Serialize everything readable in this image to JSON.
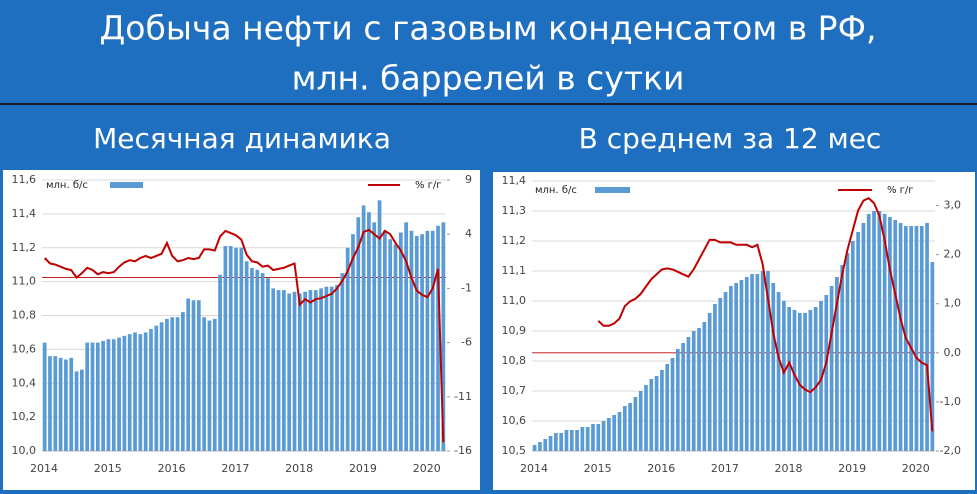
{
  "title": [
    "Добыча нефти с газовым конденсатом в РФ,",
    "млн. баррелей в сутки"
  ],
  "chart_data": [
    {
      "type": "combo",
      "title": "Месячная динамика",
      "categories": [
        "2014",
        null,
        null,
        null,
        null,
        null,
        null,
        null,
        null,
        null,
        null,
        null,
        "2015",
        null,
        null,
        null,
        null,
        null,
        null,
        null,
        null,
        null,
        null,
        null,
        "2016",
        null,
        null,
        null,
        null,
        null,
        null,
        null,
        null,
        null,
        null,
        null,
        "2017",
        null,
        null,
        null,
        null,
        null,
        null,
        null,
        null,
        null,
        null,
        null,
        "2018",
        null,
        null,
        null,
        null,
        null,
        null,
        null,
        null,
        null,
        null,
        null,
        "2019",
        null,
        null,
        null,
        null,
        null,
        null,
        null,
        null,
        null,
        null,
        null,
        "2020",
        null,
        null,
        null
      ],
      "series": [
        {
          "name": "млн. б/с",
          "color": "#5b9bd5",
          "values": [
            10.64,
            10.56,
            10.56,
            10.55,
            10.54,
            10.55,
            10.47,
            10.48,
            10.64,
            10.64,
            10.64,
            10.65,
            10.66,
            10.66,
            10.67,
            10.68,
            10.69,
            10.7,
            10.69,
            10.7,
            10.72,
            10.74,
            10.76,
            10.78,
            10.79,
            10.79,
            10.82,
            10.9,
            10.89,
            10.89,
            10.79,
            10.77,
            10.78,
            11.04,
            11.21,
            11.21,
            11.2,
            11.2,
            11.12,
            11.08,
            11.07,
            11.05,
            11.02,
            10.96,
            10.95,
            10.95,
            10.93,
            10.94,
            10.93,
            10.94,
            10.95,
            10.95,
            10.96,
            10.97,
            10.97,
            10.98,
            11.05,
            11.2,
            11.28,
            11.38,
            11.45,
            11.41,
            11.35,
            11.48,
            11.3,
            11.25,
            11.22,
            11.29,
            11.35,
            11.3,
            11.27,
            11.28,
            11.3,
            11.3,
            11.33,
            11.35
          ]
        },
        {
          "name": "% г/г",
          "color": "#c00000",
          "axis": "y2",
          "values": [
            1.8,
            1.3,
            1.2,
            1.0,
            0.8,
            0.7,
            0.0,
            0.4,
            0.9,
            0.7,
            0.3,
            0.5,
            0.4,
            0.5,
            1.0,
            1.4,
            1.6,
            1.5,
            1.8,
            2.0,
            1.8,
            2.0,
            2.2,
            3.2,
            2.0,
            1.5,
            1.6,
            1.8,
            1.7,
            1.8,
            2.6,
            2.6,
            2.5,
            3.8,
            4.3,
            4.1,
            3.9,
            3.5,
            2.1,
            1.5,
            1.4,
            1.0,
            1.1,
            0.7,
            0.8,
            0.9,
            1.1,
            1.3,
            -2.5,
            -2.0,
            -2.3,
            -2.0,
            -1.9,
            -1.7,
            -1.5,
            -1.0,
            -0.3,
            0.6,
            1.8,
            2.8,
            4.2,
            4.4,
            4.0,
            3.6,
            4.3,
            4.0,
            3.2,
            2.5,
            1.5,
            0.0,
            -1.2,
            -1.6,
            -1.8,
            -1.0,
            0.8,
            -15.2
          ]
        }
      ],
      "ylim": [
        10.0,
        11.6
      ],
      "yticks": [
        {
          "value": 10.0,
          "label": "10,0"
        },
        {
          "value": 10.2,
          "label": "10,2"
        },
        {
          "value": 10.4,
          "label": "10,4"
        },
        {
          "value": 10.6,
          "label": "10,6"
        },
        {
          "value": 10.8,
          "label": "10,8"
        },
        {
          "value": 11.0,
          "label": "11,0"
        },
        {
          "value": 11.2,
          "label": "11,2"
        },
        {
          "value": 11.4,
          "label": "11,4"
        },
        {
          "value": 11.6,
          "label": "11,6"
        }
      ],
      "y2lim": [
        -16,
        9
      ],
      "y2ticks": [
        -16,
        -11,
        -6,
        -1,
        4,
        9
      ],
      "grid": true
    },
    {
      "type": "combo",
      "title": "В среднем за 12 мес",
      "categories": [
        "2014",
        null,
        null,
        null,
        null,
        null,
        null,
        null,
        null,
        null,
        null,
        null,
        "2015",
        null,
        null,
        null,
        null,
        null,
        null,
        null,
        null,
        null,
        null,
        null,
        "2016",
        null,
        null,
        null,
        null,
        null,
        null,
        null,
        null,
        null,
        null,
        null,
        "2017",
        null,
        null,
        null,
        null,
        null,
        null,
        null,
        null,
        null,
        null,
        null,
        "2018",
        null,
        null,
        null,
        null,
        null,
        null,
        null,
        null,
        null,
        null,
        null,
        "2019",
        null,
        null,
        null,
        null,
        null,
        null,
        null,
        null,
        null,
        null,
        null,
        "2020",
        null,
        null,
        null
      ],
      "series": [
        {
          "name": "млн. б/с",
          "color": "#5b9bd5",
          "values": [
            10.52,
            10.53,
            10.54,
            10.55,
            10.56,
            10.56,
            10.57,
            10.57,
            10.57,
            10.58,
            10.58,
            10.59,
            10.59,
            10.6,
            10.61,
            10.62,
            10.63,
            10.65,
            10.66,
            10.68,
            10.7,
            10.72,
            10.74,
            10.75,
            10.77,
            10.79,
            10.81,
            10.84,
            10.86,
            10.88,
            10.9,
            10.91,
            10.93,
            10.96,
            10.99,
            11.01,
            11.03,
            11.05,
            11.06,
            11.07,
            11.08,
            11.09,
            11.09,
            11.1,
            11.1,
            11.06,
            11.03,
            11.0,
            10.98,
            10.97,
            10.96,
            10.96,
            10.97,
            10.98,
            11.0,
            11.02,
            11.05,
            11.08,
            11.12,
            11.16,
            11.2,
            11.23,
            11.26,
            11.29,
            11.3,
            11.3,
            11.29,
            11.28,
            11.27,
            11.26,
            11.25,
            11.25,
            11.25,
            11.25,
            11.26,
            11.13
          ]
        },
        {
          "name": "% г/г",
          "color": "#c00000",
          "axis": "y2",
          "values": [
            null,
            null,
            null,
            null,
            null,
            null,
            null,
            null,
            null,
            null,
            null,
            null,
            0.65,
            0.55,
            0.55,
            0.6,
            0.7,
            0.95,
            1.05,
            1.1,
            1.2,
            1.35,
            1.5,
            1.6,
            1.7,
            1.72,
            1.7,
            1.65,
            1.6,
            1.55,
            1.7,
            1.9,
            2.1,
            2.3,
            2.3,
            2.25,
            2.25,
            2.25,
            2.2,
            2.2,
            2.2,
            2.15,
            2.2,
            1.8,
            1.1,
            0.4,
            -0.1,
            -0.4,
            -0.2,
            -0.45,
            -0.65,
            -0.75,
            -0.8,
            -0.7,
            -0.55,
            -0.2,
            0.4,
            1.0,
            1.6,
            2.1,
            2.5,
            2.9,
            3.1,
            3.15,
            3.05,
            2.8,
            2.3,
            1.7,
            1.2,
            0.7,
            0.3,
            0.1,
            -0.1,
            -0.2,
            -0.25,
            -1.6
          ]
        }
      ],
      "ylim": [
        10.5,
        11.4
      ],
      "yticks": [
        {
          "value": 10.5,
          "label": "10,5"
        },
        {
          "value": 10.6,
          "label": "10,6"
        },
        {
          "value": 10.7,
          "label": "10,7"
        },
        {
          "value": 10.8,
          "label": "10,8"
        },
        {
          "value": 10.9,
          "label": "10,9"
        },
        {
          "value": 11.0,
          "label": "11,0"
        },
        {
          "value": 11.1,
          "label": "11,1"
        },
        {
          "value": 11.2,
          "label": "11,2"
        },
        {
          "value": 11.3,
          "label": "11,3"
        },
        {
          "value": 11.4,
          "label": "11,4"
        }
      ],
      "y2lim": [
        -2,
        3.5
      ],
      "y2ticks": [
        {
          "value": -2,
          "label": "-2,0"
        },
        {
          "value": -1,
          "label": "-1,0"
        },
        {
          "value": 0,
          "label": "0,0"
        },
        {
          "value": 1,
          "label": "1,0"
        },
        {
          "value": 2,
          "label": "2,0"
        },
        {
          "value": 3,
          "label": "3,0"
        }
      ],
      "grid": true
    }
  ]
}
